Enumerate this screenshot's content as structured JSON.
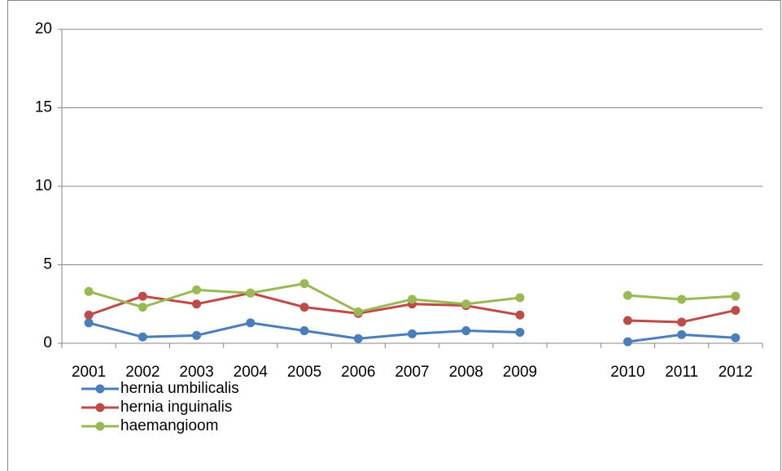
{
  "chart_data": {
    "type": "line",
    "categories": [
      "2001",
      "2002",
      "2003",
      "2004",
      "2005",
      "2006",
      "2007",
      "2008",
      "2009",
      null,
      "2010",
      "2011",
      "2012"
    ],
    "series": [
      {
        "name": "hernia umbilicalis",
        "color": "#4a7ebb",
        "values": [
          1.3,
          0.4,
          0.5,
          1.3,
          0.8,
          0.3,
          0.6,
          0.8,
          0.7,
          null,
          0.1,
          0.55,
          0.35
        ]
      },
      {
        "name": "hernia inguinalis",
        "color": "#be4b48",
        "values": [
          1.8,
          3.0,
          2.5,
          3.2,
          2.3,
          1.9,
          2.5,
          2.4,
          1.8,
          null,
          1.45,
          1.35,
          2.1
        ]
      },
      {
        "name": "haemangioom",
        "color": "#98b954",
        "values": [
          3.3,
          2.3,
          3.4,
          3.2,
          3.8,
          2.0,
          2.8,
          2.5,
          2.9,
          null,
          3.05,
          2.8,
          3.0
        ]
      }
    ],
    "ylim": [
      0,
      20
    ],
    "yticks": [
      0,
      5,
      10,
      15,
      20
    ],
    "grid": true,
    "legend": "bottom-left"
  }
}
